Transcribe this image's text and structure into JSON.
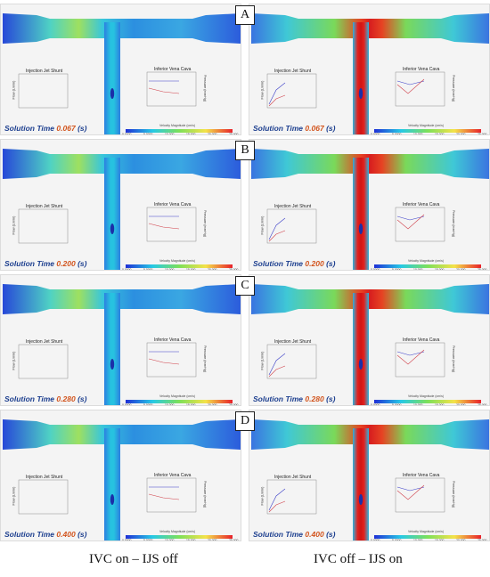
{
  "panels": [
    {
      "row": 0,
      "col": 0,
      "time_label": "Solution Time",
      "time_value": "0.067",
      "time_unit": "(s)"
    },
    {
      "row": 0,
      "col": 1,
      "time_label": "Solution Time",
      "time_value": "0.067",
      "time_unit": "(s)",
      "letter": "A"
    },
    {
      "row": 1,
      "col": 0,
      "time_label": "Solution Time",
      "time_value": "0.200",
      "time_unit": "(s)"
    },
    {
      "row": 1,
      "col": 1,
      "time_label": "Solution Time",
      "time_value": "0.200",
      "time_unit": "(s)",
      "letter": "B"
    },
    {
      "row": 2,
      "col": 0,
      "time_label": "Solution Time",
      "time_value": "0.280",
      "time_unit": "(s)"
    },
    {
      "row": 2,
      "col": 1,
      "time_label": "Solution Time",
      "time_value": "0.280",
      "time_unit": "(s)",
      "letter": "C"
    },
    {
      "row": 3,
      "col": 0,
      "time_label": "Solution Time",
      "time_value": "0.400",
      "time_unit": "(s)"
    },
    {
      "row": 3,
      "col": 1,
      "time_label": "Solution Time",
      "time_value": "0.400",
      "time_unit": "(s)",
      "letter": "D"
    }
  ],
  "letters": [
    "A",
    "B",
    "C",
    "D"
  ],
  "chart_titles": {
    "left": "Injection Jet Shunt",
    "right": "Inferior Vena Cava"
  },
  "axis_labels": {
    "flow": "Flow (L/min)",
    "pressure": "Pressure (mmHg)"
  },
  "colorbar": {
    "label": "Velocity Magnitude (cm/s)",
    "ticks": [
      "0.0000",
      "5.0000",
      "10.000",
      "15.000",
      "20.000",
      "25.000"
    ]
  },
  "captions": {
    "left": "IVC on – IJS off",
    "right": "IVC off – IJS on"
  },
  "colors": {
    "low": "#1f3bd6",
    "mid": "#27c9e6",
    "green": "#7de05a",
    "high": "#e8212a",
    "yellow": "#f4e24a"
  }
}
